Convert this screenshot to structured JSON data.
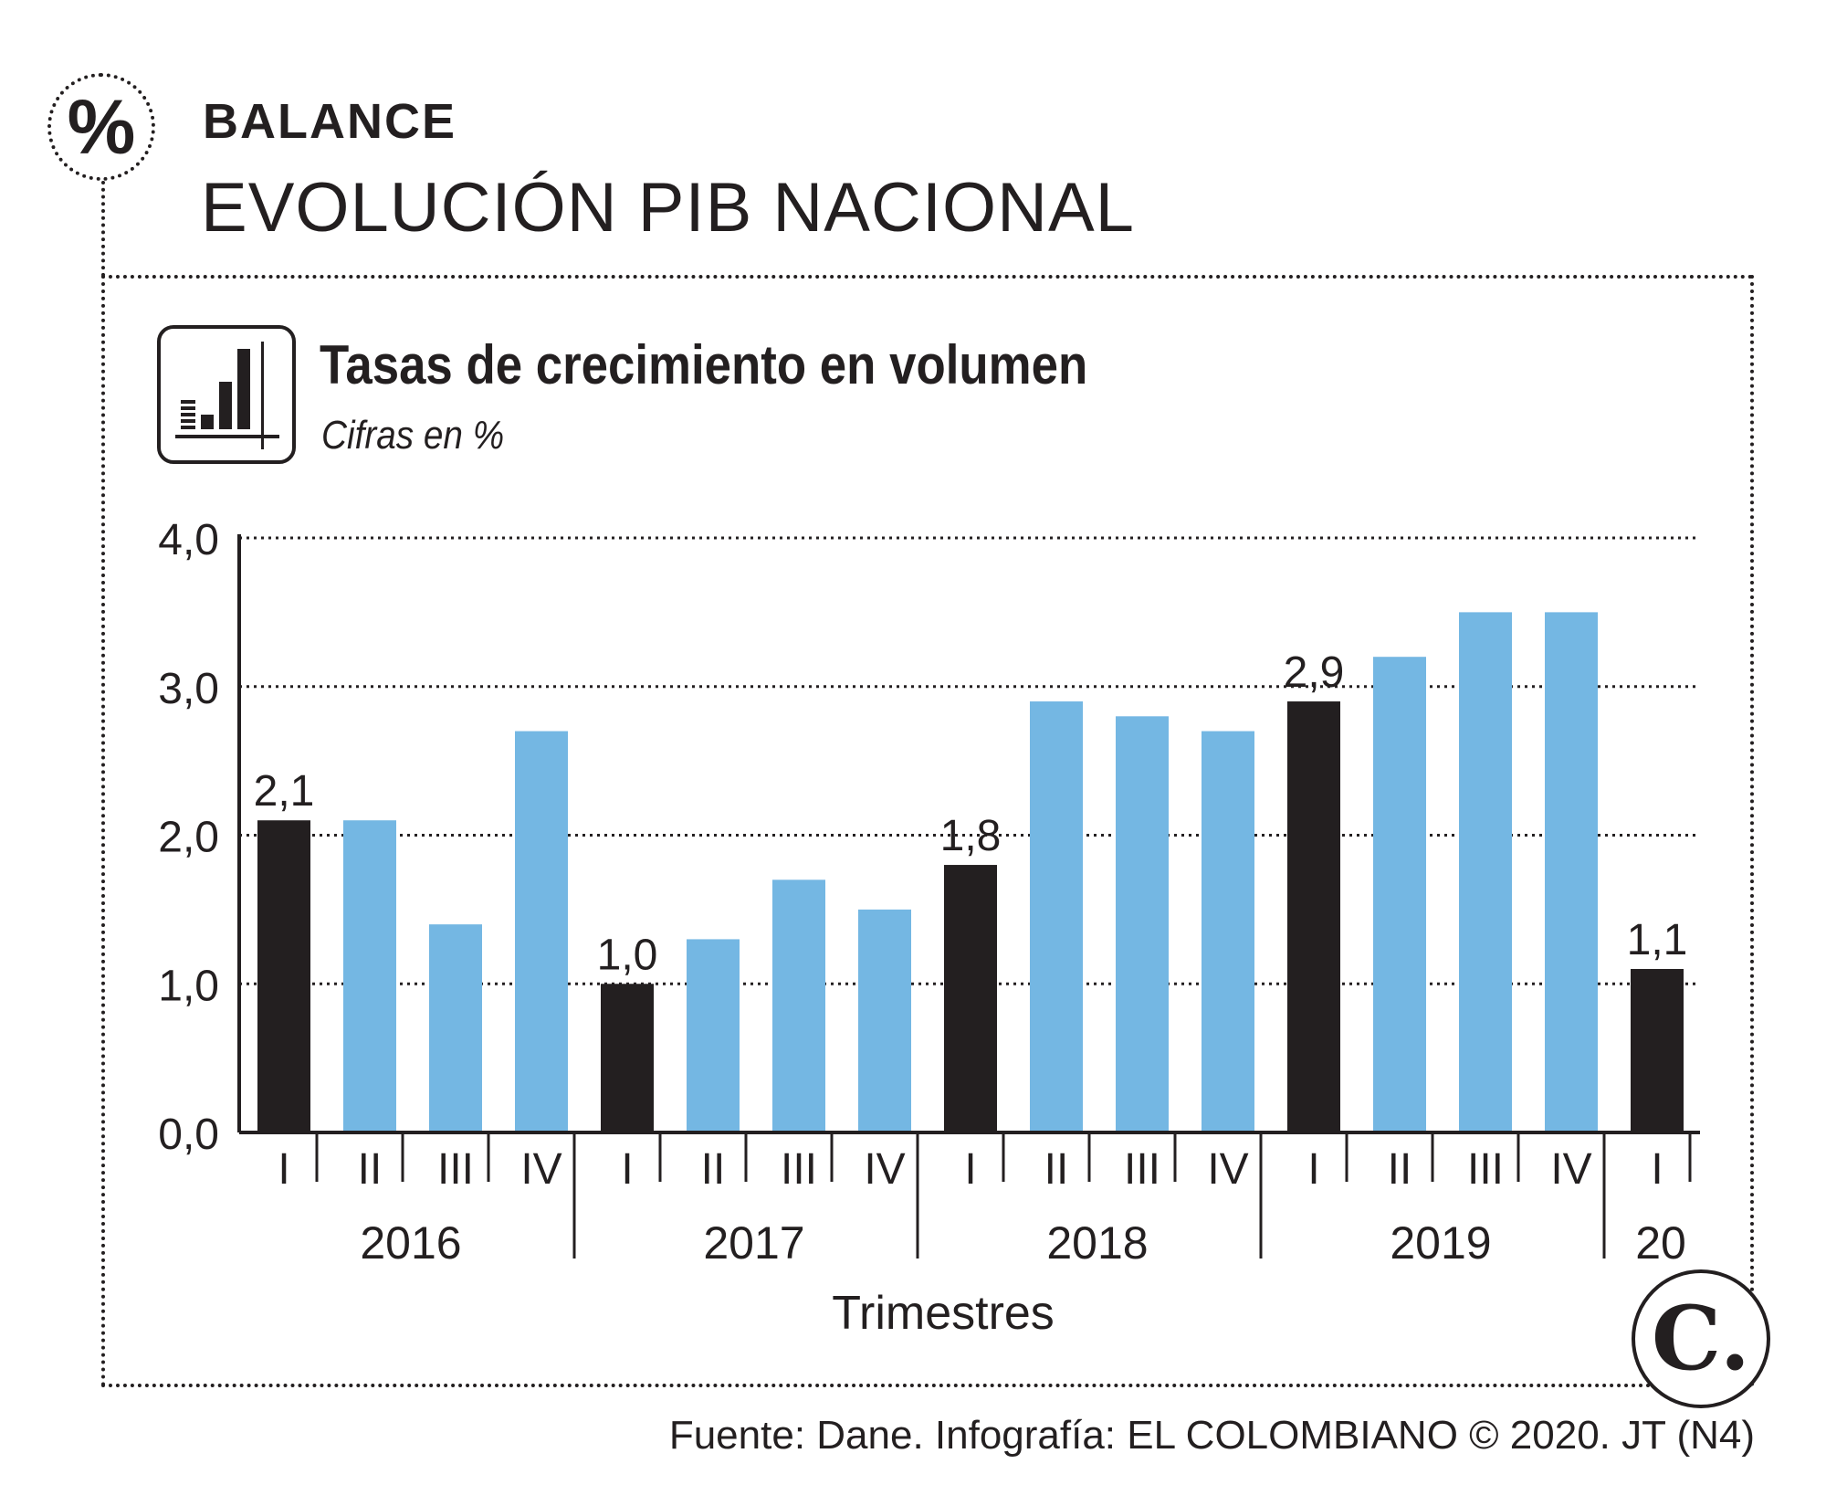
{
  "header": {
    "badge_symbol": "%",
    "section": "BALANCE",
    "title": "EVOLUCIÓN PIB NACIONAL"
  },
  "icons": {
    "badge": "percent-icon",
    "chart": "bar-chart-icon",
    "brand": "el-colombiano-logo"
  },
  "brand": {
    "logo_text": "C."
  },
  "colors": {
    "first_quarter": "#231f20",
    "other_quarters": "#74b7e3",
    "text": "#231f20"
  },
  "chart_data": {
    "type": "bar",
    "title": "Tasas de crecimiento en volumen",
    "subtitle": "Cifras en %",
    "xlabel": "Trimestres",
    "ylabel": "",
    "ylim": [
      0,
      4
    ],
    "yticks": [
      "0,0",
      "1,0",
      "2,0",
      "3,0",
      "4,0"
    ],
    "ytick_values": [
      0,
      1,
      2,
      3,
      4
    ],
    "grid": true,
    "groups": [
      {
        "label": "2016",
        "categories": [
          "I",
          "II",
          "III",
          "IV"
        ],
        "values": [
          2.1,
          2.1,
          1.4,
          2.7
        ],
        "labels": [
          "2,1",
          "",
          "",
          ""
        ]
      },
      {
        "label": "2017",
        "categories": [
          "I",
          "II",
          "III",
          "IV"
        ],
        "values": [
          1.0,
          1.3,
          1.7,
          1.5
        ],
        "labels": [
          "1,0",
          "",
          "",
          ""
        ]
      },
      {
        "label": "2018",
        "categories": [
          "I",
          "II",
          "III",
          "IV"
        ],
        "values": [
          1.8,
          2.9,
          2.8,
          2.7
        ],
        "labels": [
          "1,8",
          "",
          "",
          ""
        ]
      },
      {
        "label": "2019",
        "categories": [
          "I",
          "II",
          "III",
          "IV"
        ],
        "values": [
          2.9,
          3.2,
          3.5,
          3.5
        ],
        "labels": [
          "2,9",
          "",
          "",
          ""
        ]
      },
      {
        "label": "20",
        "categories": [
          "I"
        ],
        "values": [
          1.1
        ],
        "labels": [
          "1,1"
        ]
      }
    ]
  },
  "footer": {
    "source": "Fuente: Dane. Infografía: EL COLOMBIANO © 2020. JT (N4)"
  }
}
